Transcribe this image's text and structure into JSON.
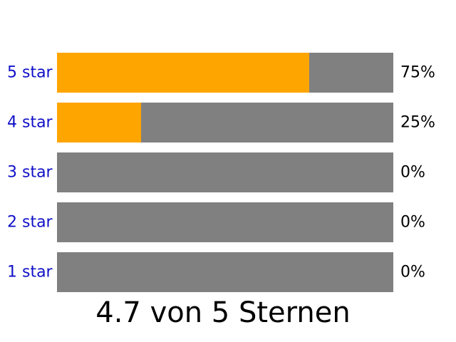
{
  "chart_data": {
    "type": "bar",
    "orientation": "horizontal",
    "categories": [
      "5 star",
      "4 star",
      "3 star",
      "2 star",
      "1 star"
    ],
    "values": [
      75,
      25,
      0,
      0,
      0
    ],
    "value_labels": [
      "75%",
      "25%",
      "0%",
      "0%",
      "0%"
    ],
    "xlim": [
      0,
      100
    ],
    "grid": false,
    "legend": "none"
  },
  "summary": {
    "text": "4.7 von 5 Sternen"
  },
  "colors": {
    "fill": "#ffa500",
    "track": "#808080",
    "link": "#1010c8",
    "text": "#000000"
  }
}
